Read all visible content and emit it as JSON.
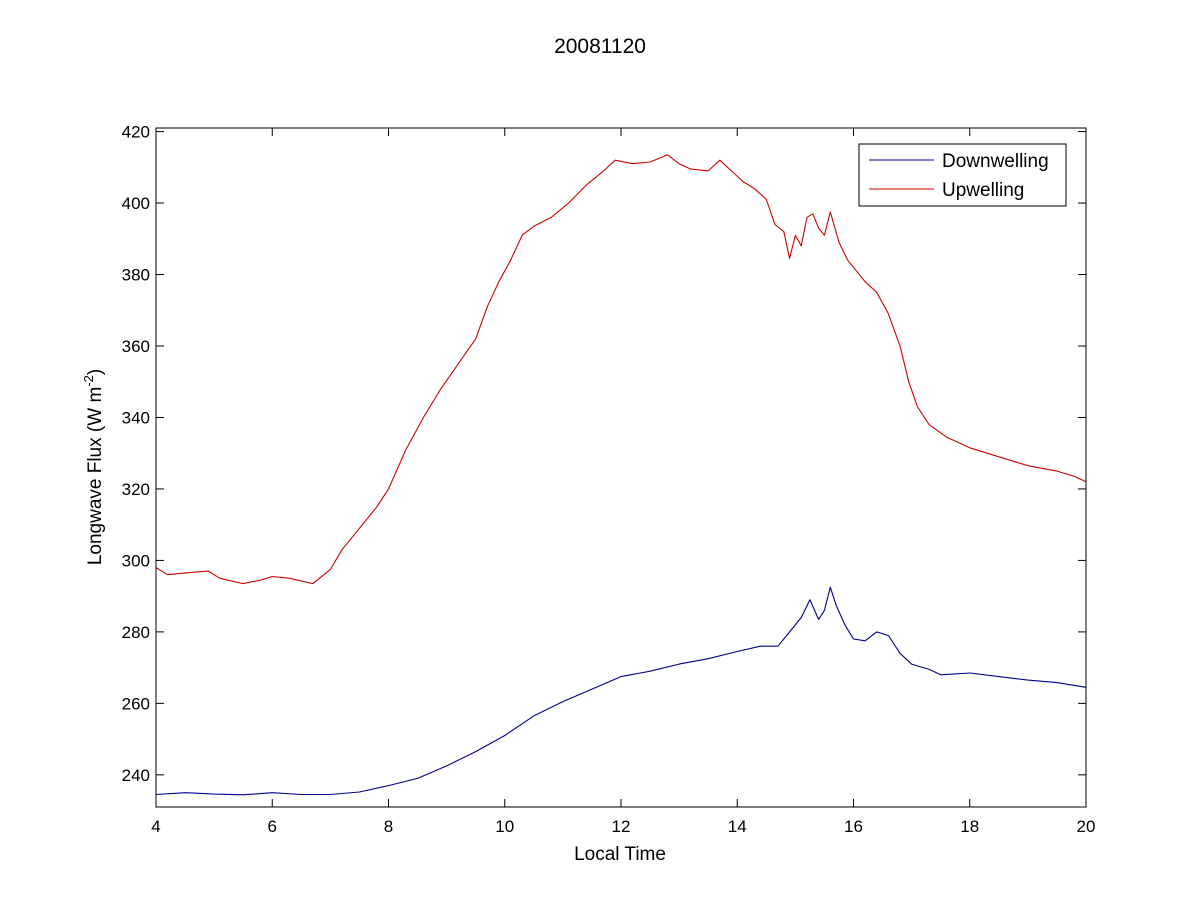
{
  "chart_data": {
    "type": "line",
    "title": "20081120",
    "xlabel": "Local Time",
    "ylabel": {
      "main": "Longwave Flux (W m",
      "sup": "-2",
      "close": ")"
    },
    "xlim": [
      4,
      20
    ],
    "ylim": [
      231,
      421
    ],
    "xticks": [
      4,
      6,
      8,
      10,
      12,
      14,
      16,
      18,
      20
    ],
    "yticks": [
      240,
      260,
      280,
      300,
      320,
      340,
      360,
      380,
      400,
      420
    ],
    "grid": false,
    "legend_position": "top-right",
    "series": [
      {
        "name": "Downwelling",
        "color": "#00008b",
        "points": [
          [
            4.0,
            234.5
          ],
          [
            4.5,
            235.0
          ],
          [
            5.0,
            234.6
          ],
          [
            5.5,
            234.4
          ],
          [
            6.0,
            235.0
          ],
          [
            6.5,
            234.5
          ],
          [
            7.0,
            234.5
          ],
          [
            7.5,
            235.2
          ],
          [
            8.0,
            237.0
          ],
          [
            8.5,
            239.0
          ],
          [
            9.0,
            242.5
          ],
          [
            9.5,
            246.5
          ],
          [
            10.0,
            251.0
          ],
          [
            10.5,
            256.5
          ],
          [
            11.0,
            260.5
          ],
          [
            11.5,
            264.0
          ],
          [
            12.0,
            267.5
          ],
          [
            12.5,
            269.0
          ],
          [
            13.0,
            271.0
          ],
          [
            13.5,
            272.5
          ],
          [
            14.0,
            274.5
          ],
          [
            14.4,
            276.0
          ],
          [
            14.7,
            276.0
          ],
          [
            14.9,
            280.0
          ],
          [
            15.1,
            284.0
          ],
          [
            15.25,
            289.0
          ],
          [
            15.4,
            283.5
          ],
          [
            15.5,
            286.0
          ],
          [
            15.6,
            292.5
          ],
          [
            15.7,
            287.5
          ],
          [
            15.85,
            282.0
          ],
          [
            16.0,
            278.0
          ],
          [
            16.2,
            277.5
          ],
          [
            16.4,
            280.0
          ],
          [
            16.6,
            279.0
          ],
          [
            16.8,
            274.0
          ],
          [
            17.0,
            271.0
          ],
          [
            17.3,
            269.5
          ],
          [
            17.5,
            268.0
          ],
          [
            18.0,
            268.5
          ],
          [
            18.5,
            267.5
          ],
          [
            19.0,
            266.5
          ],
          [
            19.5,
            265.8
          ],
          [
            20.0,
            264.5
          ]
        ]
      },
      {
        "name": "Upwelling",
        "color": "#cc0000",
        "points": [
          [
            4.0,
            298.0
          ],
          [
            4.2,
            296.0
          ],
          [
            4.5,
            296.5
          ],
          [
            4.9,
            297.0
          ],
          [
            5.1,
            295.0
          ],
          [
            5.5,
            293.5
          ],
          [
            5.8,
            294.5
          ],
          [
            6.0,
            295.5
          ],
          [
            6.3,
            295.0
          ],
          [
            6.7,
            293.5
          ],
          [
            7.0,
            297.5
          ],
          [
            7.2,
            303.0
          ],
          [
            7.5,
            309.0
          ],
          [
            7.8,
            315.0
          ],
          [
            8.0,
            320.0
          ],
          [
            8.3,
            331.0
          ],
          [
            8.6,
            340.0
          ],
          [
            8.9,
            348.0
          ],
          [
            9.2,
            355.0
          ],
          [
            9.5,
            362.0
          ],
          [
            9.7,
            371.0
          ],
          [
            9.9,
            378.0
          ],
          [
            10.1,
            384.0
          ],
          [
            10.3,
            391.0
          ],
          [
            10.5,
            393.5
          ],
          [
            10.8,
            396.0
          ],
          [
            11.1,
            400.0
          ],
          [
            11.4,
            405.0
          ],
          [
            11.7,
            409.0
          ],
          [
            11.9,
            412.0
          ],
          [
            12.2,
            411.0
          ],
          [
            12.5,
            411.5
          ],
          [
            12.8,
            413.5
          ],
          [
            13.0,
            411.0
          ],
          [
            13.2,
            409.5
          ],
          [
            13.5,
            409.0
          ],
          [
            13.7,
            412.0
          ],
          [
            13.9,
            409.0
          ],
          [
            14.1,
            406.0
          ],
          [
            14.3,
            404.0
          ],
          [
            14.5,
            401.0
          ],
          [
            14.65,
            394.0
          ],
          [
            14.8,
            392.0
          ],
          [
            14.9,
            384.5
          ],
          [
            15.0,
            391.0
          ],
          [
            15.1,
            388.0
          ],
          [
            15.2,
            396.0
          ],
          [
            15.3,
            397.0
          ],
          [
            15.4,
            393.0
          ],
          [
            15.5,
            391.0
          ],
          [
            15.6,
            397.5
          ],
          [
            15.75,
            389.0
          ],
          [
            15.9,
            384.0
          ],
          [
            16.2,
            378.0
          ],
          [
            16.4,
            375.0
          ],
          [
            16.6,
            369.0
          ],
          [
            16.8,
            360.0
          ],
          [
            16.95,
            350.0
          ],
          [
            17.1,
            343.0
          ],
          [
            17.3,
            338.0
          ],
          [
            17.6,
            334.5
          ],
          [
            18.0,
            331.5
          ],
          [
            18.5,
            329.0
          ],
          [
            19.0,
            326.5
          ],
          [
            19.5,
            325.0
          ],
          [
            19.8,
            323.5
          ],
          [
            20.0,
            322.0
          ]
        ]
      }
    ]
  }
}
